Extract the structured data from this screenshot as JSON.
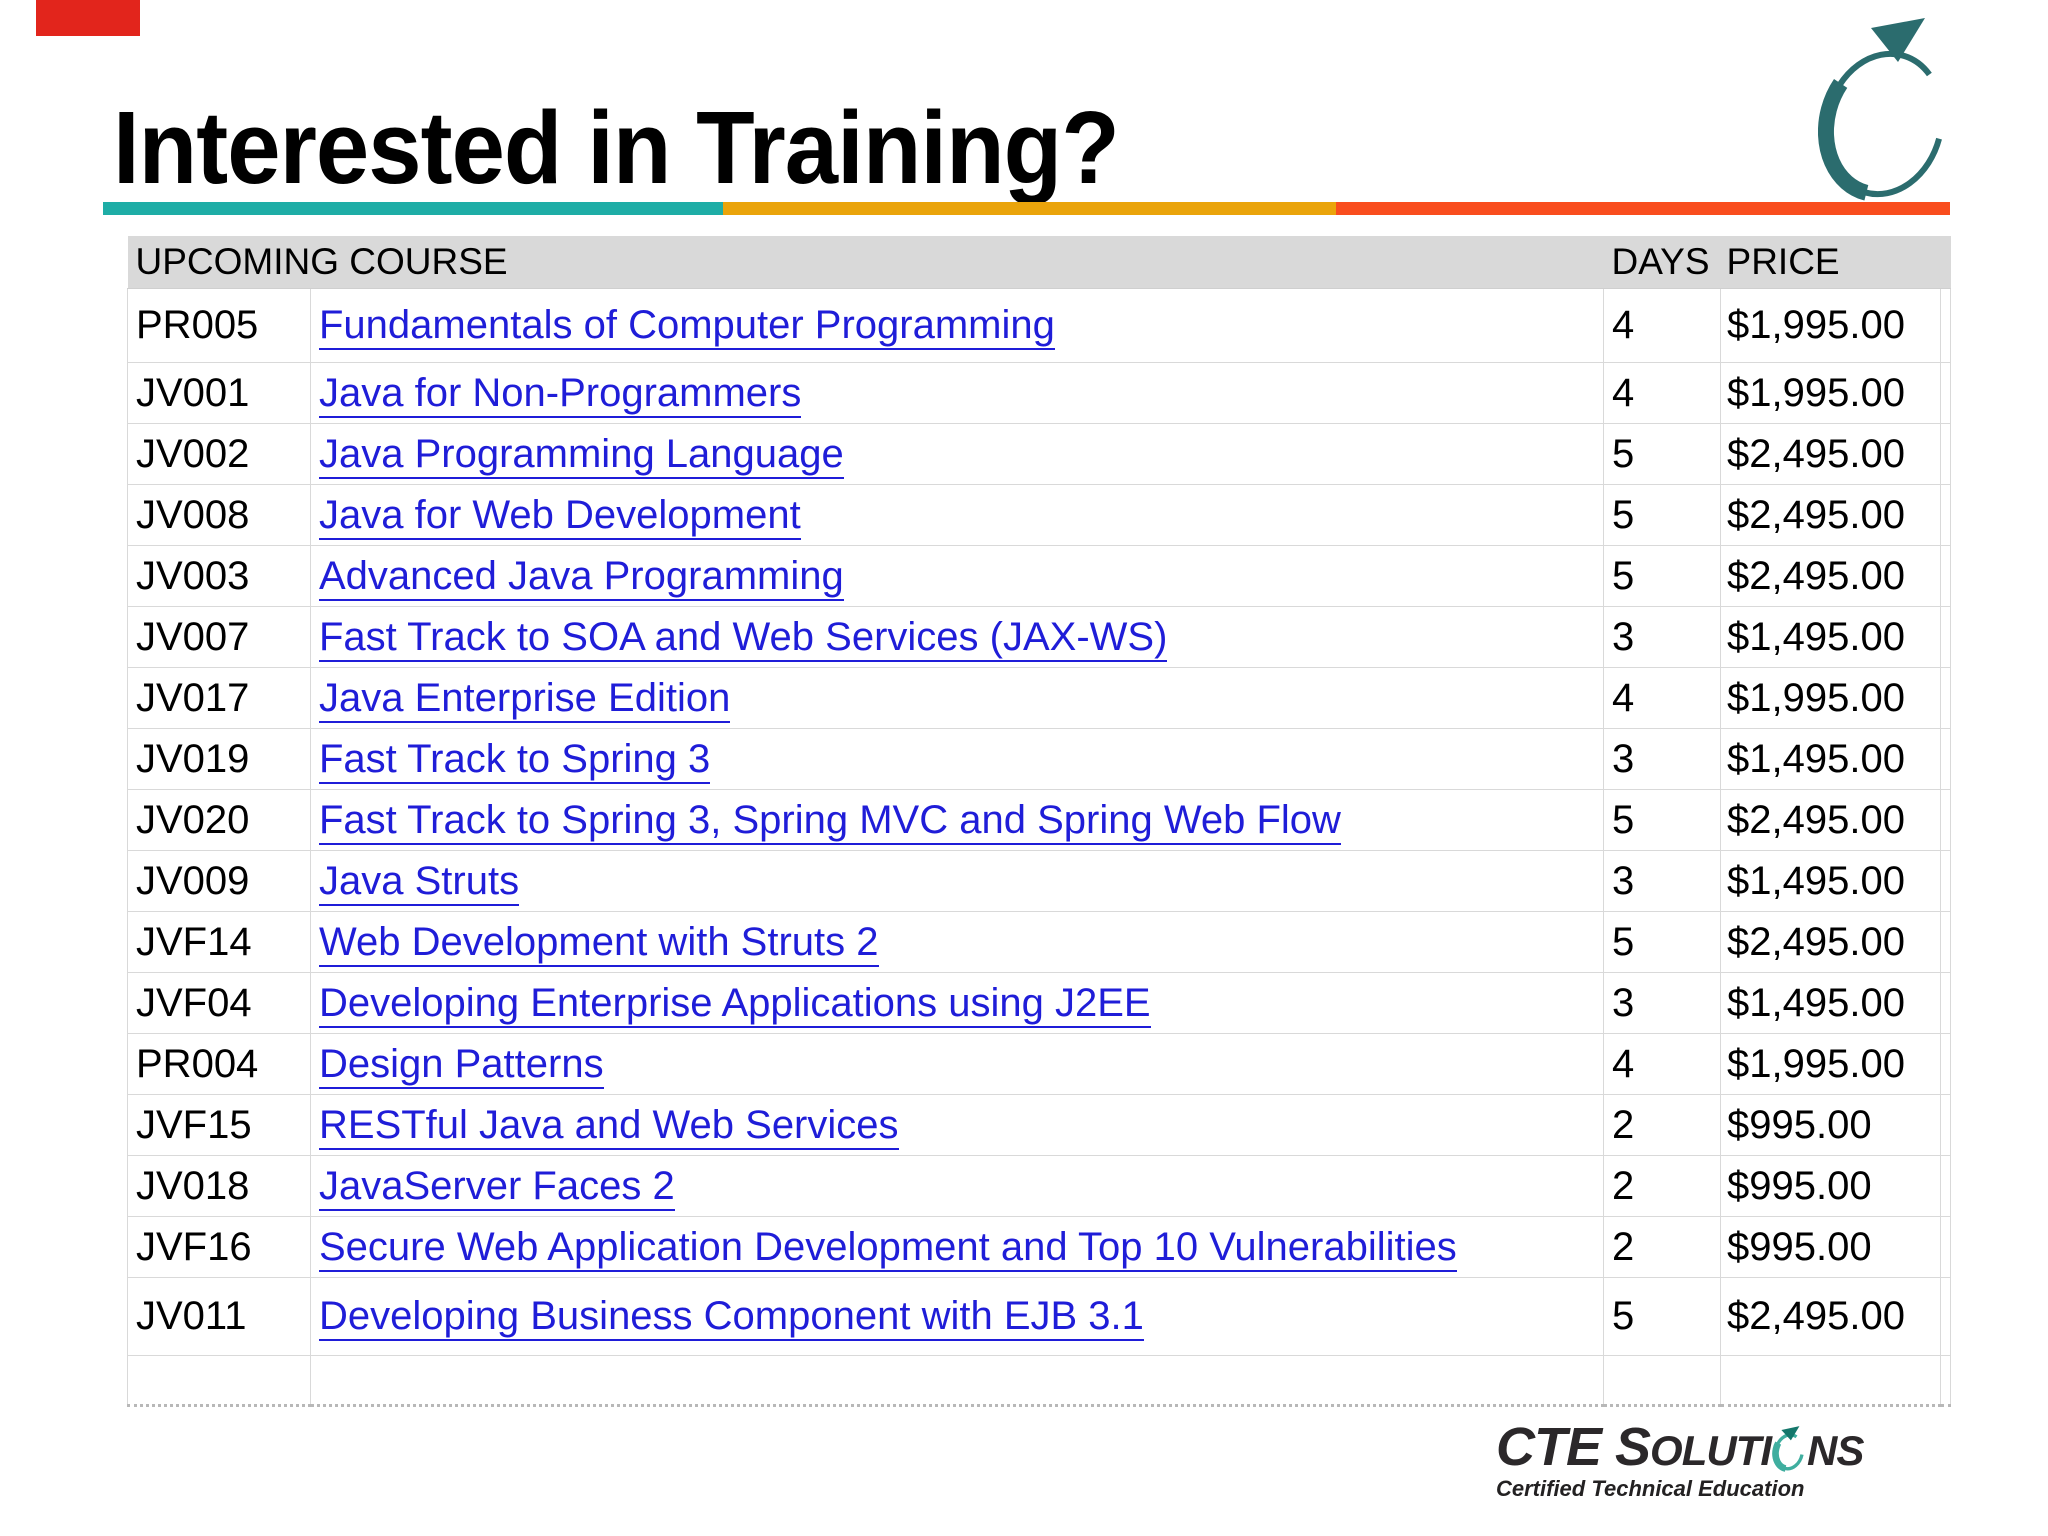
{
  "slide": {
    "title": "Interested in Training?"
  },
  "accent_colors": {
    "bar_teal": "#1EADA6",
    "bar_gold": "#EAA40B",
    "bar_orange": "#F94D1E",
    "swoosh_teal": "#2B6C6E",
    "red_marker": "#E2251C",
    "link_blue": "#1F1DD8",
    "header_gray": "#D9D9D9"
  },
  "table": {
    "headers": {
      "course": "UPCOMING COURSE",
      "days": "DAYS",
      "price": "PRICE"
    },
    "rows": [
      {
        "code": "PR005",
        "course": "Fundamentals of Computer Programming",
        "days": "4",
        "price": "$1,995.00"
      },
      {
        "code": "JV001",
        "course": "Java for Non-Programmers",
        "days": "4",
        "price": "$1,995.00"
      },
      {
        "code": "JV002",
        "course": "Java Programming Language",
        "days": "5",
        "price": "$2,495.00"
      },
      {
        "code": "JV008",
        "course": "Java for Web Development",
        "days": "5",
        "price": "$2,495.00"
      },
      {
        "code": "JV003",
        "course": "Advanced Java Programming",
        "days": "5",
        "price": "$2,495.00"
      },
      {
        "code": "JV007",
        "course": "Fast Track to SOA and Web Services (JAX-WS)",
        "days": "3",
        "price": "$1,495.00"
      },
      {
        "code": "JV017",
        "course": "Java Enterprise Edition",
        "days": "4",
        "price": "$1,995.00"
      },
      {
        "code": "JV019",
        "course": "Fast Track to Spring 3",
        "days": "3",
        "price": "$1,495.00"
      },
      {
        "code": "JV020",
        "course": "Fast Track to Spring 3, Spring MVC and Spring Web Flow",
        "days": "5",
        "price": "$2,495.00"
      },
      {
        "code": "JV009",
        "course": "Java Struts",
        "days": "3",
        "price": "$1,495.00"
      },
      {
        "code": "JVF14",
        "course": "Web Development with Struts 2",
        "days": "5",
        "price": "$2,495.00"
      },
      {
        "code": "JVF04",
        "course": "Developing Enterprise Applications using J2EE",
        "days": "3",
        "price": "$1,495.00"
      },
      {
        "code": "PR004",
        "course": "Design Patterns",
        "days": "4",
        "price": "$1,995.00"
      },
      {
        "code": "JVF15",
        "course": "RESTful Java and Web Services",
        "days": "2",
        "price": "$995.00"
      },
      {
        "code": "JV018",
        "course": "JavaServer Faces 2",
        "days": "2",
        "price": "$995.00"
      },
      {
        "code": "JVF16",
        "course": "Secure Web Application Development and Top 10 Vulnerabilities",
        "days": "2",
        "price": "$995.00"
      },
      {
        "code": "JV011",
        "course": "Developing Business Component with EJB 3.1",
        "days": "5",
        "price": "$2,495.00"
      },
      {
        "code": "",
        "course": "",
        "days": "",
        "price": ""
      }
    ]
  },
  "branding": {
    "name_part1": "CTE S",
    "name_part2": "OLUTI",
    "name_part3": "NS",
    "tagline": "Certified Technical Education"
  }
}
